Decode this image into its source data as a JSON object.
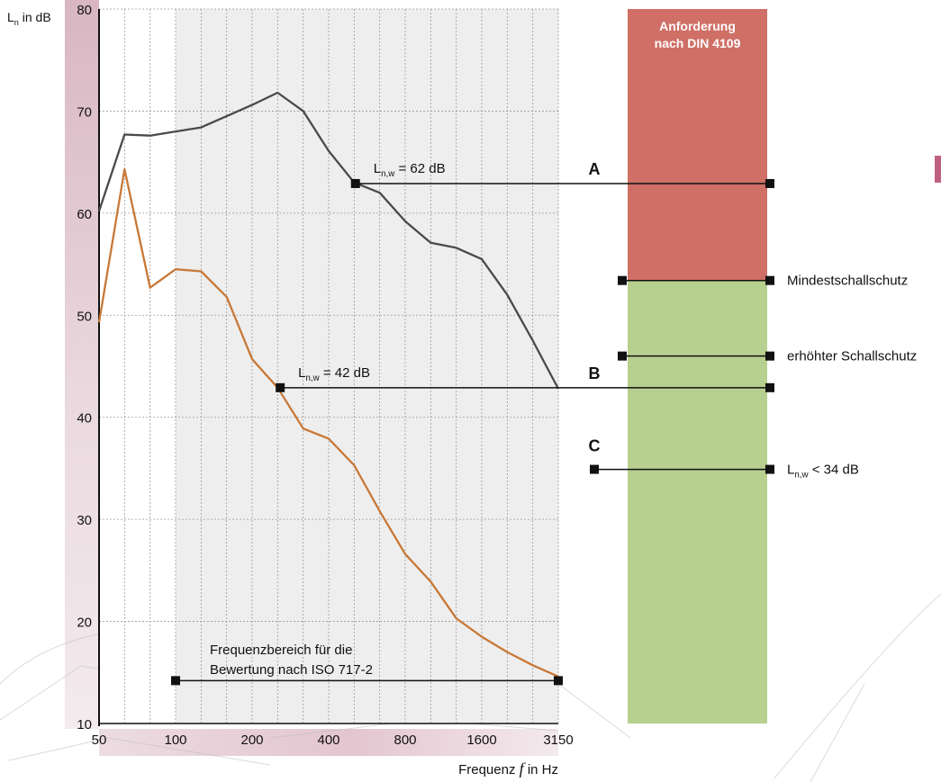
{
  "chart_data": {
    "type": "line",
    "ylabel": "L",
    "ylabel_sub": "n",
    "ylabel_unit": " in dB",
    "xlabel": "Frequenz",
    "xlabel_var": "f",
    "xlabel_unit": " in Hz",
    "ylim": [
      10,
      80
    ],
    "yticks": [
      10,
      20,
      30,
      40,
      50,
      60,
      70,
      80
    ],
    "x_categories": [
      "50",
      "63",
      "80",
      "100",
      "125",
      "160",
      "200",
      "250",
      "315",
      "400",
      "500",
      "630",
      "800",
      "1000",
      "1250",
      "1600",
      "2000",
      "2500",
      "3150"
    ],
    "x_tick_labels": [
      "50",
      "100",
      "200",
      "400",
      "800",
      "1600",
      "3150"
    ],
    "grid": true,
    "series": [
      {
        "key": "dark",
        "color": "#4a4a4a",
        "values": [
          60.2,
          67.7,
          67.6,
          68.0,
          68.4,
          69.5,
          70.6,
          71.8,
          70.0,
          66.1,
          63.0,
          62.0,
          59.2,
          57.1,
          56.6,
          55.5,
          52.0,
          47.5,
          42.8
        ]
      },
      {
        "key": "orange",
        "color": "#c87837",
        "values": [
          49.3,
          64.3,
          52.7,
          54.5,
          54.3,
          51.8,
          45.7,
          42.9,
          38.9,
          37.9,
          35.3,
          30.8,
          26.6,
          23.9,
          20.3,
          18.5,
          17.0,
          15.7,
          14.6
        ]
      }
    ],
    "annotations": [
      {
        "id": "A",
        "label": "A",
        "level": 62.9,
        "from_index": 10.05,
        "text_main": "L",
        "text_sub": "n,w",
        "text_rest": " = 62 dB"
      },
      {
        "id": "B",
        "label": "B",
        "level": 42.9,
        "from_index": 7.1,
        "text_main": "L",
        "text_sub": "n,w",
        "text_rest": " = 42 dB"
      },
      {
        "id": "C",
        "label": "C",
        "level": 34.9,
        "text_main": "L",
        "text_sub": "n,w",
        "text_rest": " < 34 dB"
      }
    ],
    "range_bracket": {
      "from_index": 3,
      "to_index": 18,
      "level": 14.2,
      "text_line1": "Frequenzbereich für die",
      "text_line2": "Bewertung nach ISO 717-2"
    },
    "requirement_bar": {
      "title_line1": "Anforderung",
      "title_line2": "nach DIN 4109",
      "red_color": "#cf6f66",
      "green_color": "#b7cf8f",
      "boundary_level": 53.4,
      "markers": [
        {
          "level": 53.4,
          "text": "Mindestschallschutz"
        },
        {
          "level": 46.0,
          "text": "erhöhter Schallschutz"
        }
      ]
    }
  }
}
